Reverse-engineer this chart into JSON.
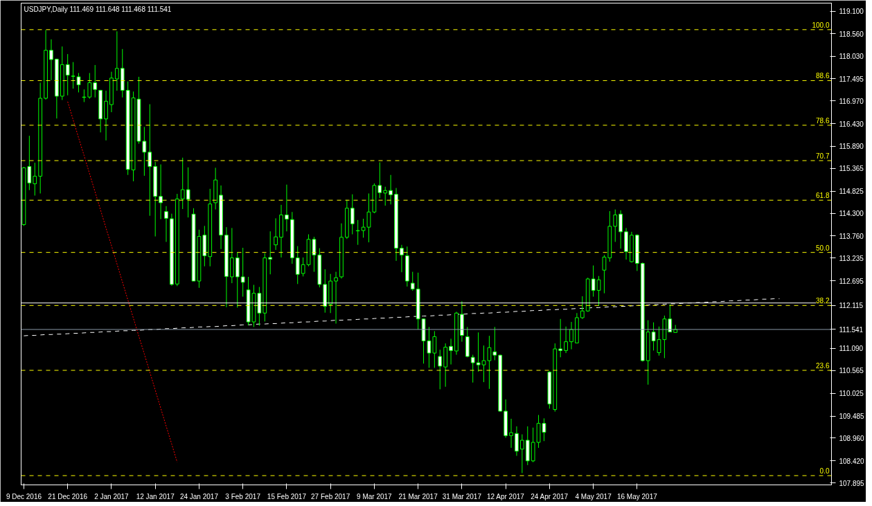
{
  "chart_data": {
    "type": "candlestick",
    "title": "USDJPY,Daily  111.469 111.648 111.468 111.541",
    "color": "#00ff00",
    "categories": [
      "9 Dec 2016",
      null,
      null,
      null,
      null,
      null,
      null,
      null,
      "21 Dec 2016",
      null,
      null,
      null,
      null,
      null,
      null,
      null,
      "2 Jan 2017",
      null,
      null,
      null,
      null,
      null,
      null,
      null,
      "12 Jan 2017",
      null,
      null,
      null,
      null,
      null,
      null,
      null,
      "24 Jan 2017",
      null,
      null,
      null,
      null,
      null,
      null,
      null,
      "3 Feb 2017",
      null,
      null,
      null,
      null,
      null,
      null,
      null,
      "15 Feb 2017",
      null,
      null,
      null,
      null,
      null,
      null,
      null,
      "27 Feb 2017",
      null,
      null,
      null,
      null,
      null,
      null,
      null,
      "9 Mar 2017",
      null,
      null,
      null,
      null,
      null,
      null,
      null,
      "21 Mar 2017",
      null,
      null,
      null,
      null,
      null,
      null,
      null,
      "31 Mar 2017",
      null,
      null,
      null,
      null,
      null,
      null,
      null,
      "12 Apr 2017",
      null,
      null,
      null,
      null,
      null,
      null,
      null,
      "24 Apr 2017",
      null,
      null,
      null,
      null,
      null,
      null,
      null,
      "4 May 2017",
      null,
      null,
      null,
      null,
      null,
      null,
      null,
      "16 May 2017",
      null,
      null,
      null,
      null,
      null,
      null,
      null,
      null,
      null,
      null,
      null,
      null,
      null,
      null,
      null,
      null,
      null,
      null,
      null,
      null,
      null,
      null,
      null,
      null,
      null,
      null,
      null,
      null,
      null,
      null,
      null,
      null,
      null,
      null,
      null
    ],
    "ohlc": [
      [
        114.03,
        115.4,
        114.0,
        115.38
      ],
      [
        115.41,
        116.14,
        114.85,
        115.02
      ],
      [
        115.0,
        115.5,
        114.72,
        115.18
      ],
      [
        115.18,
        117.4,
        114.77,
        117.03
      ],
      [
        117.03,
        118.65,
        117.0,
        118.17
      ],
      [
        118.17,
        118.43,
        117.46,
        117.95
      ],
      [
        117.96,
        117.97,
        116.55,
        117.08
      ],
      [
        117.08,
        118.26,
        116.99,
        117.83
      ],
      [
        117.83,
        118.08,
        117.1,
        117.58
      ],
      [
        117.55,
        117.89,
        117.26,
        117.56
      ],
      [
        117.54,
        117.63,
        117.17,
        117.35
      ],
      [
        117.05,
        117.24,
        116.94,
        117.06
      ],
      [
        117.06,
        117.63,
        117.02,
        117.4
      ],
      [
        117.4,
        117.82,
        117.05,
        117.24
      ],
      [
        117.22,
        117.23,
        116.22,
        116.54
      ],
      [
        116.54,
        117.21,
        116.03,
        116.96
      ],
      [
        116.88,
        117.66,
        116.7,
        117.51
      ],
      [
        117.49,
        118.62,
        117.21,
        117.74
      ],
      [
        117.74,
        118.2,
        117.05,
        117.22
      ],
      [
        117.22,
        117.43,
        115.21,
        115.34
      ],
      [
        115.33,
        117.19,
        115.06,
        117.04
      ],
      [
        117.01,
        117.54,
        115.95,
        116.01
      ],
      [
        116.01,
        116.35,
        115.19,
        115.75
      ],
      [
        115.75,
        116.89,
        114.24,
        115.41
      ],
      [
        115.41,
        115.52,
        113.75,
        114.7
      ],
      [
        114.7,
        115.46,
        114.16,
        114.55
      ],
      [
        114.34,
        114.47,
        113.62,
        114.18
      ],
      [
        114.17,
        114.29,
        112.58,
        112.61
      ],
      [
        112.62,
        114.76,
        112.57,
        114.64
      ],
      [
        114.64,
        115.62,
        114.4,
        114.86
      ],
      [
        114.86,
        115.39,
        114.2,
        114.63
      ],
      [
        114.28,
        114.42,
        112.69,
        112.69
      ],
      [
        112.69,
        113.91,
        112.53,
        113.75
      ],
      [
        113.78,
        114.0,
        113.04,
        113.29
      ],
      [
        113.27,
        114.88,
        113.04,
        114.52
      ],
      [
        114.55,
        115.38,
        114.39,
        115.09
      ],
      [
        114.73,
        114.96,
        113.45,
        113.78
      ],
      [
        113.78,
        113.97,
        112.07,
        112.8
      ],
      [
        112.79,
        113.95,
        112.64,
        113.24
      ],
      [
        113.24,
        113.38,
        112.06,
        112.79
      ],
      [
        112.79,
        113.48,
        112.32,
        112.66
      ],
      [
        112.48,
        112.79,
        111.64,
        111.72
      ],
      [
        111.72,
        112.6,
        111.6,
        112.4
      ],
      [
        112.4,
        112.55,
        111.63,
        111.93
      ],
      [
        111.93,
        113.35,
        111.73,
        113.24
      ],
      [
        113.25,
        113.87,
        112.85,
        113.21
      ],
      [
        113.55,
        114.18,
        113.43,
        113.74
      ],
      [
        113.73,
        114.5,
        113.25,
        114.26
      ],
      [
        114.26,
        114.98,
        113.87,
        114.16
      ],
      [
        114.15,
        114.33,
        113.1,
        113.24
      ],
      [
        113.24,
        113.52,
        112.62,
        112.85
      ],
      [
        112.87,
        113.25,
        112.8,
        113.08
      ],
      [
        113.08,
        113.8,
        113.04,
        113.68
      ],
      [
        113.68,
        113.74,
        112.91,
        113.31
      ],
      [
        113.31,
        113.47,
        112.54,
        112.61
      ],
      [
        112.61,
        112.97,
        111.94,
        112.09
      ],
      [
        112.14,
        112.86,
        111.93,
        112.69
      ],
      [
        112.69,
        112.91,
        111.68,
        112.77
      ],
      [
        112.79,
        114.06,
        112.75,
        113.73
      ],
      [
        113.73,
        114.62,
        113.69,
        114.42
      ],
      [
        114.42,
        114.75,
        113.8,
        114.05
      ],
      [
        113.88,
        114.14,
        113.55,
        113.89
      ],
      [
        113.89,
        114.17,
        113.72,
        113.97
      ],
      [
        113.97,
        114.77,
        113.61,
        114.33
      ],
      [
        114.33,
        115.01,
        114.3,
        114.96
      ],
      [
        114.96,
        115.51,
        114.66,
        114.79
      ],
      [
        114.78,
        114.93,
        114.48,
        114.84
      ],
      [
        114.84,
        115.21,
        114.51,
        114.74
      ],
      [
        114.75,
        114.9,
        113.17,
        113.47
      ],
      [
        113.47,
        113.55,
        112.9,
        113.31
      ],
      [
        113.29,
        113.51,
        112.56,
        112.69
      ],
      [
        112.64,
        112.91,
        112.46,
        112.5
      ],
      [
        112.5,
        112.89,
        111.54,
        111.79
      ],
      [
        111.79,
        111.8,
        110.73,
        111.27
      ],
      [
        111.27,
        111.6,
        110.63,
        110.98
      ],
      [
        110.98,
        111.5,
        110.63,
        111.37
      ],
      [
        110.9,
        111.06,
        110.12,
        110.67
      ],
      [
        110.65,
        111.21,
        110.18,
        111.12
      ],
      [
        111.14,
        111.32,
        110.71,
        111.04
      ],
      [
        111.03,
        111.96,
        110.94,
        111.93
      ],
      [
        111.9,
        112.21,
        111.25,
        111.4
      ],
      [
        111.37,
        111.6,
        110.88,
        110.9
      ],
      [
        110.88,
        110.94,
        110.28,
        110.75
      ],
      [
        110.75,
        111.47,
        110.54,
        110.7
      ],
      [
        110.7,
        111.16,
        110.29,
        110.8
      ],
      [
        110.8,
        111.39,
        110.13,
        111.11
      ],
      [
        111.01,
        111.6,
        110.81,
        110.93
      ],
      [
        110.93,
        110.94,
        109.59,
        109.6
      ],
      [
        109.6,
        109.88,
        108.97,
        109.02
      ],
      [
        109.02,
        109.42,
        108.73,
        109.09
      ],
      [
        109.07,
        109.24,
        108.54,
        108.65
      ],
      [
        108.7,
        109.05,
        108.13,
        108.91
      ],
      [
        108.91,
        109.24,
        108.32,
        108.42
      ],
      [
        108.42,
        109.21,
        108.39,
        108.86
      ],
      [
        108.86,
        109.51,
        108.73,
        109.31
      ],
      [
        109.31,
        109.43,
        108.89,
        109.1
      ],
      [
        110.53,
        110.55,
        109.66,
        109.77
      ],
      [
        109.64,
        111.21,
        109.59,
        111.08
      ],
      [
        111.08,
        111.79,
        110.88,
        111.04
      ],
      [
        111.04,
        111.61,
        110.98,
        111.25
      ],
      [
        111.25,
        111.72,
        111.07,
        111.54
      ],
      [
        111.22,
        111.93,
        111.22,
        111.82
      ],
      [
        111.82,
        112.33,
        111.79,
        111.98
      ],
      [
        111.98,
        112.77,
        111.96,
        112.74
      ],
      [
        112.74,
        113.06,
        112.32,
        112.47
      ],
      [
        112.47,
        112.81,
        112.1,
        112.72
      ],
      [
        112.95,
        113.31,
        112.4,
        113.26
      ],
      [
        113.24,
        114.35,
        113.15,
        113.99
      ],
      [
        113.99,
        114.39,
        113.62,
        114.26
      ],
      [
        114.28,
        114.37,
        113.46,
        113.86
      ],
      [
        113.86,
        113.95,
        113.2,
        113.39
      ],
      [
        113.15,
        113.86,
        113.13,
        113.78
      ],
      [
        113.78,
        113.8,
        112.93,
        113.11
      ],
      [
        113.11,
        113.13,
        110.78,
        110.8
      ],
      [
        110.8,
        111.76,
        110.23,
        111.48
      ],
      [
        111.48,
        111.71,
        111.04,
        111.27
      ],
      [
        110.99,
        111.61,
        110.92,
        111.3
      ],
      [
        111.3,
        111.87,
        110.86,
        111.79
      ],
      [
        111.79,
        112.14,
        111.48,
        111.48
      ],
      [
        111.469,
        111.648,
        111.468,
        111.541
      ],
      null,
      null,
      null,
      null,
      null,
      null,
      null,
      null,
      null,
      null,
      null,
      null,
      null,
      null,
      null,
      null,
      null,
      null,
      null,
      null,
      null,
      null,
      null,
      null,
      null,
      null,
      null,
      null
    ],
    "series": [
      {
        "type": "line",
        "values": [
          null,
          null,
          null,
          null,
          null,
          null,
          null,
          null,
          116.95,
          116.52,
          116.09,
          115.67,
          115.24,
          114.81,
          114.38,
          113.95,
          113.53,
          113.1,
          112.67,
          112.24,
          111.81,
          111.38,
          110.96,
          110.53,
          110.1,
          109.67,
          109.24,
          108.82,
          108.39,
          null,
          null,
          null,
          null,
          null,
          null,
          null,
          null,
          null,
          null,
          null,
          null,
          null,
          null,
          null,
          null,
          null,
          null,
          null,
          null,
          null,
          null,
          null,
          null,
          null,
          null,
          null,
          null,
          null,
          null,
          null,
          null,
          null,
          null,
          null,
          null,
          null,
          null,
          null,
          null,
          null,
          null,
          null,
          null,
          null,
          null,
          null,
          null,
          null,
          null,
          null,
          null,
          null,
          null,
          null,
          null,
          null,
          null,
          null,
          null,
          null,
          null,
          null,
          null,
          null,
          null,
          null,
          null,
          null,
          null,
          null,
          null,
          null,
          null,
          null,
          null,
          null,
          null,
          null,
          null,
          null,
          null,
          null,
          null,
          null,
          null,
          null,
          null,
          null,
          null,
          null,
          null,
          null,
          null,
          null,
          null,
          null,
          null,
          null,
          null,
          null,
          null,
          null,
          null,
          null,
          null,
          null,
          null,
          null,
          null,
          null,
          null,
          null,
          null,
          null,
          null,
          null,
          null,
          null
        ],
        "color": "#ff0000",
        "line_style": "dotted"
      },
      {
        "type": "line",
        "values": [
          111.39,
          111.4,
          111.4,
          111.41,
          111.42,
          111.42,
          111.43,
          111.43,
          111.44,
          111.45,
          111.45,
          111.46,
          111.47,
          111.47,
          111.48,
          111.49,
          111.49,
          111.5,
          111.51,
          111.51,
          111.52,
          111.52,
          111.53,
          111.54,
          111.54,
          111.55,
          111.56,
          111.56,
          111.57,
          111.58,
          111.58,
          111.59,
          111.6,
          111.6,
          111.61,
          111.61,
          111.62,
          111.63,
          111.63,
          111.64,
          111.65,
          111.65,
          111.66,
          111.67,
          111.67,
          111.68,
          111.68,
          111.69,
          111.7,
          111.7,
          111.71,
          111.72,
          111.72,
          111.73,
          111.74,
          111.74,
          111.75,
          111.76,
          111.76,
          111.77,
          111.77,
          111.78,
          111.79,
          111.79,
          111.8,
          111.81,
          111.81,
          111.82,
          111.83,
          111.83,
          111.84,
          111.85,
          111.85,
          111.86,
          111.86,
          111.87,
          111.88,
          111.88,
          111.89,
          111.9,
          111.9,
          111.91,
          111.92,
          111.92,
          111.93,
          111.93,
          111.94,
          111.95,
          111.95,
          111.96,
          111.97,
          111.97,
          111.98,
          111.99,
          111.99,
          112.0,
          112.01,
          112.01,
          112.02,
          112.02,
          112.03,
          112.04,
          112.04,
          112.05,
          112.06,
          112.06,
          112.07,
          112.08,
          112.08,
          112.09,
          112.09,
          112.1,
          112.11,
          112.11,
          112.12,
          112.13,
          112.13,
          112.14,
          112.15,
          112.15,
          112.16,
          112.17,
          112.17,
          112.18,
          112.18,
          112.19,
          112.2,
          112.2,
          112.21,
          112.22,
          112.22,
          112.23,
          112.24,
          112.24,
          112.25,
          112.26,
          112.26,
          112.27,
          112.27,
          null,
          null,
          null,
          null,
          null,
          null,
          null,
          null,
          null
        ],
        "color": "#ffffff",
        "line_style": "dashed"
      }
    ],
    "ref_lines": [
      {
        "axis": "y",
        "value": 118.66,
        "color": "#ffff00",
        "line_style": "dashed"
      },
      {
        "axis": "y",
        "value": 117.45,
        "color": "#ffff00",
        "line_style": "dashed"
      },
      {
        "axis": "y",
        "value": 116.39,
        "color": "#ffff00",
        "line_style": "dashed"
      },
      {
        "axis": "y",
        "value": 115.55,
        "color": "#ffff00",
        "line_style": "dashed"
      },
      {
        "axis": "y",
        "value": 114.61,
        "color": "#ffff00",
        "line_style": "dashed"
      },
      {
        "axis": "y",
        "value": 113.37,
        "color": "#ffff00",
        "line_style": "dashed"
      },
      {
        "axis": "y",
        "value": 112.11,
        "color": "#ffff00",
        "line_style": "dashed"
      },
      {
        "axis": "y",
        "value": 110.57,
        "color": "#ffff00",
        "line_style": "dashed"
      },
      {
        "axis": "y",
        "value": 108.07,
        "color": "#ffff00",
        "line_style": "dashed"
      },
      {
        "axis": "y",
        "value": 112.17,
        "color": "#ffffff",
        "line_style": "solid"
      },
      {
        "axis": "y",
        "value": 111.541,
        "color": "#8a9aa8",
        "line_style": "solid"
      }
    ],
    "annotations": [
      {
        "text": "100.0",
        "y": 118.66
      },
      {
        "text": "88.6",
        "y": 117.45
      },
      {
        "text": "78.6",
        "y": 116.39
      },
      {
        "text": "70.7",
        "y": 115.55
      },
      {
        "text": "61.8",
        "y": 114.61
      },
      {
        "text": "50.0",
        "y": 113.37
      },
      {
        "text": "38.2",
        "y": 112.11
      },
      {
        "text": "23.6",
        "y": 110.57
      },
      {
        "text": "0.0",
        "y": 108.07
      }
    ],
    "ylim": [
      107.85,
      119.29
    ],
    "yticks": [
      {
        "value": 119.1,
        "label": "119.100"
      },
      {
        "value": 118.56,
        "label": "118.560"
      },
      {
        "value": 118.03,
        "label": "118.030"
      },
      {
        "value": 117.495,
        "label": "117.495"
      },
      {
        "value": 116.97,
        "label": "116.970"
      },
      {
        "value": 116.43,
        "label": "116.430"
      },
      {
        "value": 115.89,
        "label": "115.890"
      },
      {
        "value": 115.365,
        "label": "115.365"
      },
      {
        "value": 114.825,
        "label": "114.825"
      },
      {
        "value": 114.3,
        "label": "114.300"
      },
      {
        "value": 113.76,
        "label": "113.760"
      },
      {
        "value": 113.235,
        "label": "113.235"
      },
      {
        "value": 112.695,
        "label": "112.695"
      },
      {
        "value": 112.115,
        "label": "112.115"
      },
      {
        "value": 111.541,
        "label": "111.541"
      },
      {
        "value": 111.09,
        "label": "111.090"
      },
      {
        "value": 110.565,
        "label": "110.565"
      },
      {
        "value": 110.025,
        "label": "110.025"
      },
      {
        "value": 109.485,
        "label": "109.485"
      },
      {
        "value": 108.96,
        "label": "108.960"
      },
      {
        "value": 108.42,
        "label": "108.420"
      },
      {
        "value": 107.895,
        "label": "107.895"
      }
    ]
  }
}
